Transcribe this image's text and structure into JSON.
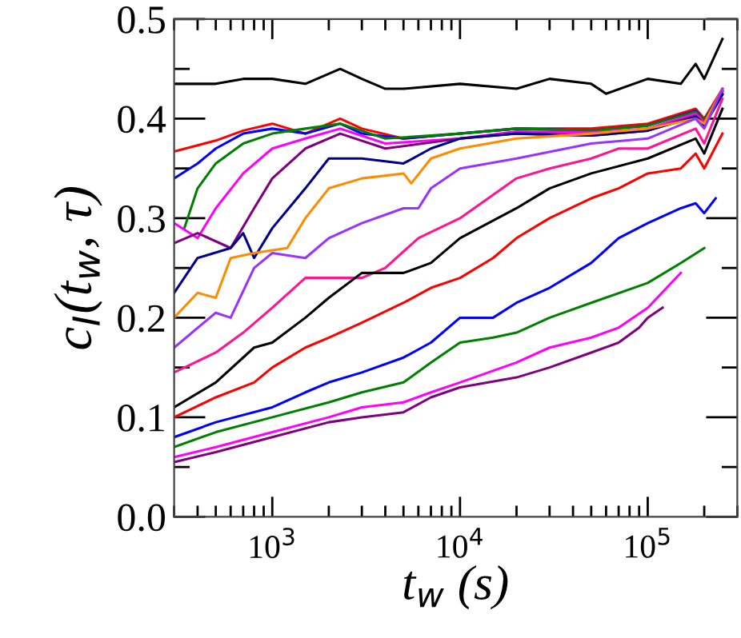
{
  "chart_data": {
    "type": "line",
    "xlabel": "t$_{w}$ (s)",
    "ylabel": "c$_{I}$(t$_{w}$, τ)",
    "log": "x",
    "grid": false,
    "legend": false,
    "marker": "none",
    "line_style": "solid",
    "xlim": [
      300,
      300000
    ],
    "ylim": [
      0.0,
      0.5
    ],
    "xticks": [
      {
        "value": 1000,
        "label": "10$^{3}$"
      },
      {
        "value": 10000,
        "label": "10$^{4}$"
      },
      {
        "value": 100000,
        "label": "10$^{5}$"
      }
    ],
    "yticks": [
      {
        "value": 0.0,
        "label": "0.0"
      },
      {
        "value": 0.05,
        "label": null
      },
      0.1,
      {
        "value": 0.15,
        "label": null
      },
      0.2,
      {
        "value": 0.25,
        "label": null
      },
      0.3,
      {
        "value": 0.35,
        "label": null
      },
      0.4,
      {
        "value": 0.45,
        "label": null
      },
      0.5
    ],
    "series": [
      {
        "color": "#000000",
        "x": [
          300,
          500,
          700,
          1000,
          1500,
          2300,
          3000,
          4000,
          5000,
          10000,
          20000,
          30000,
          50000,
          60000,
          100000,
          150000,
          180000,
          200000,
          250000
        ],
        "values": [
          0.435,
          0.435,
          0.44,
          0.44,
          0.435,
          0.45,
          0.44,
          0.43,
          0.43,
          0.435,
          0.43,
          0.44,
          0.435,
          0.425,
          0.44,
          0.435,
          0.455,
          0.44,
          0.48
        ]
      },
      {
        "color": "#ff0000",
        "x": [
          300,
          500,
          700,
          1000,
          1500,
          2300,
          3000,
          5000,
          10000,
          20000,
          50000,
          100000,
          180000,
          200000,
          250000
        ],
        "values": [
          0.367,
          0.378,
          0.388,
          0.395,
          0.385,
          0.4,
          0.39,
          0.38,
          0.385,
          0.39,
          0.39,
          0.395,
          0.41,
          0.4,
          0.43
        ]
      },
      {
        "color": "#0000ff",
        "x": [
          300,
          400,
          500,
          700,
          1000,
          1500,
          2300,
          3000,
          5000,
          10000,
          20000,
          50000,
          100000,
          180000,
          200000,
          250000
        ],
        "values": [
          0.34,
          0.355,
          0.37,
          0.385,
          0.39,
          0.385,
          0.395,
          0.385,
          0.38,
          0.385,
          0.39,
          0.388,
          0.393,
          0.408,
          0.398,
          0.428
        ]
      },
      {
        "color": "#008000",
        "x": [
          340,
          400,
          500,
          700,
          1000,
          1500,
          2300,
          4000,
          10000,
          20000,
          50000,
          100000,
          180000,
          200000,
          250000
        ],
        "values": [
          0.29,
          0.33,
          0.355,
          0.375,
          0.385,
          0.39,
          0.395,
          0.38,
          0.385,
          0.39,
          0.388,
          0.393,
          0.407,
          0.398,
          0.428
        ]
      },
      {
        "color": "#ff00ff",
        "x": [
          300,
          400,
          500,
          700,
          1000,
          1500,
          2300,
          4000,
          10000,
          20000,
          50000,
          100000,
          180000,
          200000,
          250000
        ],
        "values": [
          0.295,
          0.28,
          0.31,
          0.345,
          0.37,
          0.38,
          0.39,
          0.375,
          0.38,
          0.387,
          0.386,
          0.39,
          0.405,
          0.396,
          0.427
        ]
      },
      {
        "color": "#800080",
        "x": [
          300,
          400,
          600,
          800,
          1000,
          1500,
          2300,
          4000,
          10000,
          20000,
          50000,
          100000,
          180000,
          200000,
          250000
        ],
        "values": [
          0.275,
          0.285,
          0.27,
          0.31,
          0.34,
          0.37,
          0.385,
          0.37,
          0.38,
          0.385,
          0.383,
          0.388,
          0.403,
          0.394,
          0.425
        ]
      },
      {
        "color": "#00008b",
        "x": [
          300,
          400,
          600,
          700,
          800,
          1000,
          1500,
          2000,
          3000,
          5000,
          7000,
          10000,
          20000,
          50000,
          100000,
          180000,
          200000,
          250000
        ],
        "values": [
          0.225,
          0.26,
          0.27,
          0.285,
          0.26,
          0.29,
          0.33,
          0.36,
          0.36,
          0.355,
          0.37,
          0.38,
          0.385,
          0.383,
          0.388,
          0.402,
          0.393,
          0.424
        ]
      },
      {
        "color": "#ff8c00",
        "x": [
          300,
          400,
          500,
          600,
          800,
          1200,
          1500,
          2000,
          3000,
          5000,
          5500,
          7000,
          10000,
          20000,
          50000,
          100000,
          180000,
          200000,
          250000
        ],
        "values": [
          0.2,
          0.225,
          0.22,
          0.26,
          0.265,
          0.27,
          0.3,
          0.33,
          0.34,
          0.345,
          0.335,
          0.36,
          0.37,
          0.38,
          0.385,
          0.39,
          0.4,
          0.395,
          0.43
        ]
      },
      {
        "color": "#9933ff",
        "x": [
          300,
          500,
          600,
          800,
          1000,
          1500,
          2000,
          3000,
          5000,
          6000,
          7000,
          10000,
          20000,
          50000,
          100000,
          180000,
          200000,
          250000
        ],
        "values": [
          0.17,
          0.205,
          0.2,
          0.25,
          0.265,
          0.26,
          0.28,
          0.295,
          0.31,
          0.31,
          0.33,
          0.35,
          0.36,
          0.375,
          0.38,
          0.4,
          0.39,
          0.43
        ]
      },
      {
        "color": "#ff1493",
        "x": [
          300,
          500,
          700,
          1000,
          1500,
          2000,
          3000,
          4000,
          6000,
          10000,
          20000,
          30000,
          50000,
          70000,
          100000,
          180000,
          200000,
          250000
        ],
        "values": [
          0.145,
          0.165,
          0.185,
          0.21,
          0.24,
          0.24,
          0.24,
          0.25,
          0.28,
          0.3,
          0.34,
          0.35,
          0.36,
          0.37,
          0.37,
          0.39,
          0.375,
          0.42
        ]
      },
      {
        "color": "#000000",
        "x": [
          300,
          500,
          800,
          1000,
          1500,
          2000,
          3000,
          5000,
          7000,
          10000,
          20000,
          30000,
          50000,
          100000,
          180000,
          200000,
          250000
        ],
        "values": [
          0.11,
          0.135,
          0.17,
          0.175,
          0.2,
          0.22,
          0.245,
          0.245,
          0.255,
          0.28,
          0.31,
          0.33,
          0.345,
          0.36,
          0.38,
          0.365,
          0.41
        ]
      },
      {
        "color": "#ff0000",
        "x": [
          300,
          500,
          800,
          1000,
          1500,
          2000,
          3000,
          5000,
          7000,
          10000,
          15000,
          20000,
          30000,
          50000,
          70000,
          100000,
          150000,
          180000,
          200000,
          250000
        ],
        "values": [
          0.1,
          0.12,
          0.135,
          0.15,
          0.17,
          0.18,
          0.195,
          0.215,
          0.23,
          0.24,
          0.26,
          0.28,
          0.3,
          0.32,
          0.33,
          0.345,
          0.35,
          0.365,
          0.35,
          0.385
        ]
      },
      {
        "color": "#0000ff",
        "x": [
          300,
          500,
          1000,
          1500,
          2000,
          3000,
          5000,
          7000,
          10000,
          15000,
          20000,
          30000,
          50000,
          70000,
          100000,
          150000,
          180000,
          200000,
          230000
        ],
        "values": [
          0.08,
          0.095,
          0.11,
          0.125,
          0.135,
          0.145,
          0.16,
          0.175,
          0.2,
          0.2,
          0.215,
          0.23,
          0.255,
          0.28,
          0.295,
          0.31,
          0.315,
          0.305,
          0.32
        ]
      },
      {
        "color": "#008000",
        "x": [
          300,
          500,
          1000,
          2000,
          3000,
          5000,
          7000,
          10000,
          15000,
          20000,
          30000,
          50000,
          100000,
          150000,
          200000
        ],
        "values": [
          0.07,
          0.085,
          0.1,
          0.115,
          0.125,
          0.135,
          0.155,
          0.175,
          0.18,
          0.185,
          0.2,
          0.215,
          0.235,
          0.255,
          0.27
        ]
      },
      {
        "color": "#ff00ff",
        "x": [
          300,
          500,
          1000,
          2000,
          3000,
          5000,
          7000,
          10000,
          20000,
          30000,
          50000,
          70000,
          100000,
          150000
        ],
        "values": [
          0.06,
          0.07,
          0.085,
          0.1,
          0.11,
          0.115,
          0.125,
          0.135,
          0.155,
          0.17,
          0.18,
          0.19,
          0.21,
          0.245
        ]
      },
      {
        "color": "#800080",
        "x": [
          300,
          500,
          1000,
          2000,
          3000,
          5000,
          7000,
          10000,
          20000,
          30000,
          50000,
          70000,
          90000,
          100000,
          120000
        ],
        "values": [
          0.055,
          0.065,
          0.08,
          0.095,
          0.1,
          0.105,
          0.12,
          0.13,
          0.14,
          0.15,
          0.165,
          0.175,
          0.19,
          0.2,
          0.21
        ]
      }
    ]
  }
}
